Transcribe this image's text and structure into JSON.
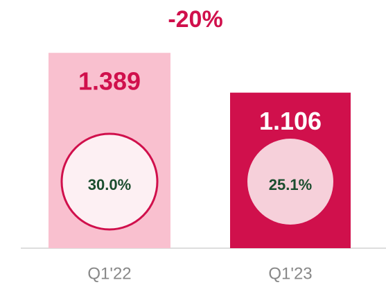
{
  "chart_data": {
    "type": "bar",
    "annotation": "-20%",
    "categories": [
      "Q1'22",
      "Q1'23"
    ],
    "values": [
      1.389,
      1.106
    ],
    "colors": [
      "#f9c0cf",
      "#d0104c"
    ],
    "circle_labels": [
      "30.0%",
      "25.1%"
    ],
    "ylim": [
      0,
      1.4
    ]
  }
}
